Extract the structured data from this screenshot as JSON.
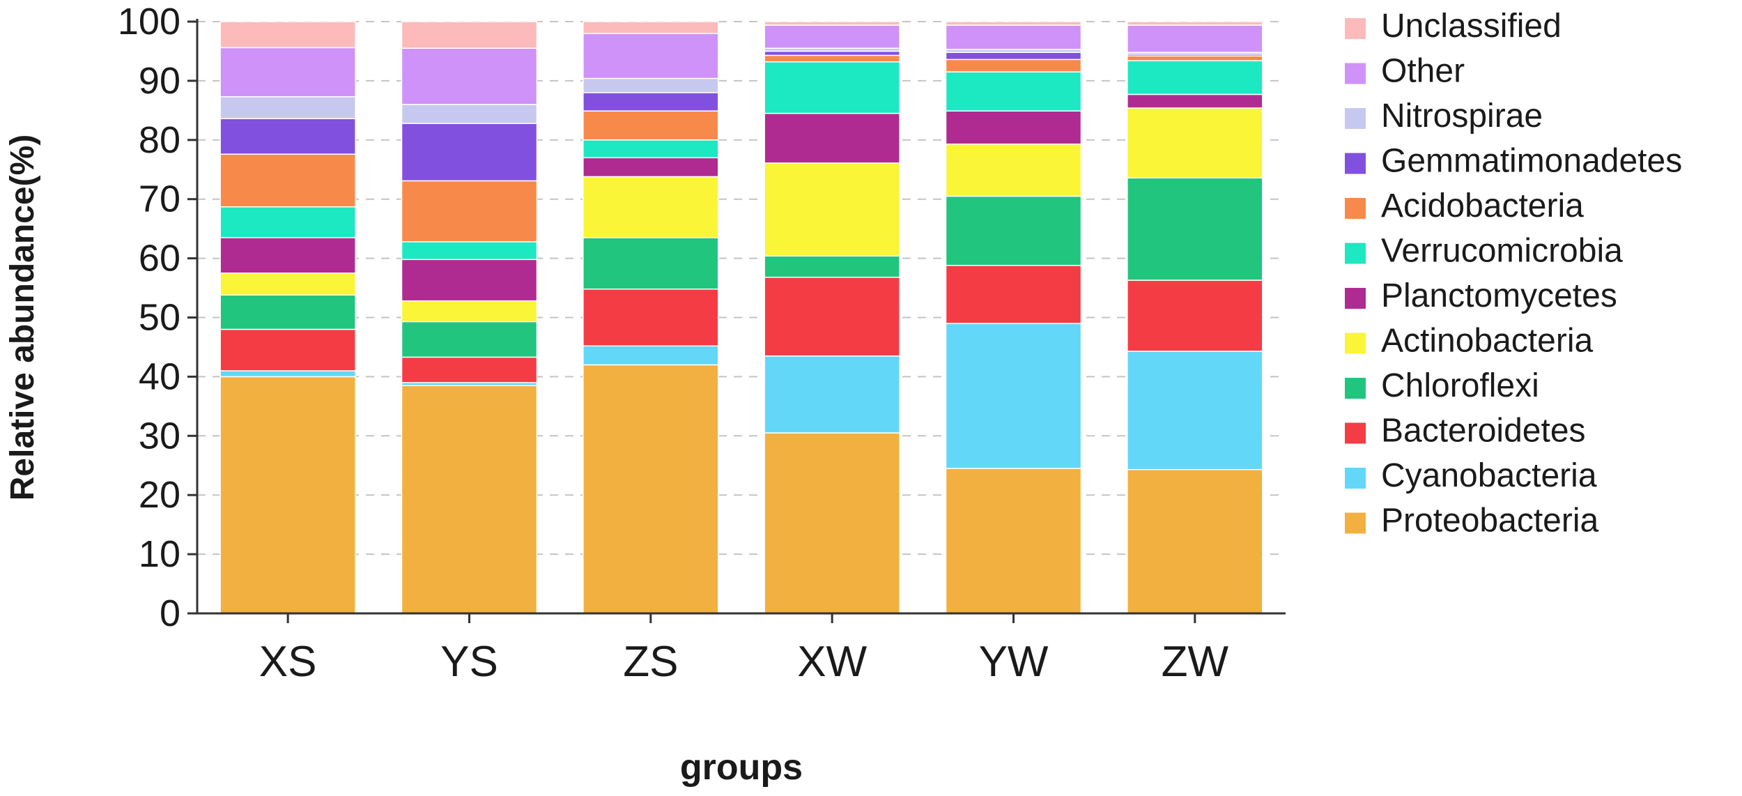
{
  "chart_data": {
    "type": "stacked_bar",
    "title": "",
    "xlabel": "groups",
    "ylabel": "Relative abundance(%)",
    "ylim": [
      0,
      100
    ],
    "yticks": [
      0,
      10,
      20,
      30,
      40,
      50,
      60,
      70,
      80,
      90,
      100
    ],
    "grid": "horizontal-dashed",
    "legend_position": "right",
    "categories": [
      "XS",
      "YS",
      "ZS",
      "XW",
      "YW",
      "ZW"
    ],
    "series": [
      {
        "name": "Proteobacteria",
        "color": "#F2B040",
        "values": [
          40.0,
          38.5,
          42.0,
          30.5,
          24.5,
          24.3
        ]
      },
      {
        "name": "Cyanobacteria",
        "color": "#62D7F8",
        "values": [
          1.0,
          0.5,
          3.2,
          13.0,
          24.5,
          20.0
        ]
      },
      {
        "name": "Bacteroidetes",
        "color": "#F43C45",
        "values": [
          7.0,
          4.3,
          9.6,
          13.3,
          9.8,
          12.0
        ]
      },
      {
        "name": "Chloroflexi",
        "color": "#22C57E",
        "values": [
          5.8,
          6.0,
          8.7,
          3.6,
          11.7,
          17.3
        ]
      },
      {
        "name": "Actinobacteria",
        "color": "#FAF536",
        "values": [
          3.7,
          3.5,
          10.3,
          15.7,
          8.8,
          11.8
        ]
      },
      {
        "name": "Planctomycetes",
        "color": "#B02B91",
        "values": [
          6.0,
          7.0,
          3.2,
          8.4,
          5.6,
          2.3
        ]
      },
      {
        "name": "Verrucomicrobia",
        "color": "#1CE8C2",
        "values": [
          5.2,
          3.0,
          3.0,
          8.7,
          6.6,
          5.7
        ]
      },
      {
        "name": "Acidobacteria",
        "color": "#F78A4A",
        "values": [
          8.9,
          10.3,
          4.9,
          1.1,
          2.1,
          0.8
        ]
      },
      {
        "name": "Gemmatimonadetes",
        "color": "#8250DE",
        "values": [
          6.0,
          9.7,
          3.1,
          0.7,
          1.2,
          0.3
        ]
      },
      {
        "name": "Nitrospirae",
        "color": "#C7C8EF",
        "values": [
          3.7,
          3.2,
          2.4,
          0.5,
          0.5,
          0.3
        ]
      },
      {
        "name": "Other",
        "color": "#CF92F8",
        "values": [
          8.3,
          9.5,
          7.6,
          3.9,
          4.1,
          4.6
        ]
      },
      {
        "name": "Unclassified",
        "color": "#FDBABA",
        "values": [
          4.4,
          4.5,
          2.0,
          0.6,
          0.6,
          0.6
        ]
      }
    ]
  }
}
